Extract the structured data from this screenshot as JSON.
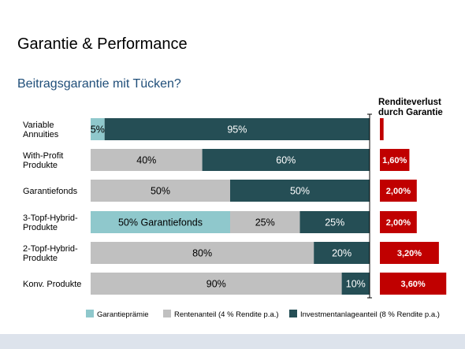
{
  "slide": {
    "title": "Garantie & Performance",
    "subtitle": "Beitragsgarantie mit Tücken?"
  },
  "chart_data": {
    "type": "bar",
    "orientation": "horizontal",
    "stacked": true,
    "categories": [
      [
        "Variable",
        "Annuities"
      ],
      [
        "With-Profit",
        "Produkte"
      ],
      [
        "Garantiefonds"
      ],
      [
        "3-Topf-Hybrid-",
        "Produkte"
      ],
      [
        "2-Topf-Hybrid-",
        "Produkte"
      ],
      [
        "Konv. Produkte"
      ]
    ],
    "xlim": [
      0,
      100
    ],
    "series": [
      {
        "name": "Garantieprämie",
        "color": "#8fc8cc",
        "values": [
          5,
          0,
          0,
          50,
          0,
          0
        ],
        "labels": [
          "5%",
          "",
          "",
          "50% Garantiefonds",
          "",
          ""
        ]
      },
      {
        "name": "Rentenanteil (4 % Rendite p.a.)",
        "color": "#c0c0c0",
        "values": [
          0,
          40,
          50,
          25,
          80,
          90
        ],
        "labels": [
          "",
          "40%",
          "50%",
          "25%",
          "80%",
          "90%"
        ]
      },
      {
        "name": "Investmentanlageanteil (8 % Rendite p.a.)",
        "color": "#254e55",
        "values": [
          95,
          60,
          50,
          25,
          20,
          10
        ],
        "labels": [
          "95%",
          "60%",
          "50%",
          "25%",
          "20%",
          "10%"
        ]
      }
    ],
    "side_bars": {
      "title": [
        "Renditeverlust",
        "durch Garantie"
      ],
      "color": "#c00000",
      "unit": "%",
      "values": [
        0.2,
        1.6,
        2.0,
        2.0,
        3.2,
        3.6
      ],
      "labels": [
        "",
        "1,60%",
        "2,00%",
        "2,00%",
        "3,20%",
        "3,60%"
      ]
    },
    "legend_position": "bottom"
  }
}
